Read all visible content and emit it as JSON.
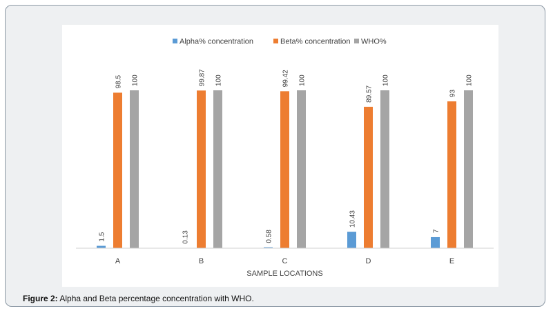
{
  "caption": {
    "label": "Figure 2:",
    "text": "Alpha and Beta percentage concentration with WHO."
  },
  "chart_data": {
    "type": "bar",
    "xlabel": "SAMPLE LOCATIONS",
    "ylabel": "",
    "ylim": [
      0,
      100
    ],
    "grid": false,
    "legend_position": "top",
    "categories": [
      "A",
      "B",
      "C",
      "D",
      "E"
    ],
    "series": [
      {
        "name": "Alpha% concentration",
        "color": "#5b9bd5",
        "values": [
          1.5,
          0.13,
          0.58,
          10.43,
          7
        ],
        "labels": [
          "1.5",
          "0.13",
          "0.58",
          "10.43",
          "7"
        ]
      },
      {
        "name": "Beta% concentration",
        "color": "#ed7d31",
        "values": [
          98.5,
          99.87,
          99.42,
          89.57,
          93
        ],
        "labels": [
          "98.5",
          "99.87",
          "99.42",
          "89.57",
          "93"
        ]
      },
      {
        "name": "WHO%",
        "color": "#a5a5a5",
        "values": [
          100,
          100,
          100,
          100,
          100
        ],
        "labels": [
          "100",
          "100",
          "100",
          "100",
          "100"
        ]
      }
    ]
  }
}
